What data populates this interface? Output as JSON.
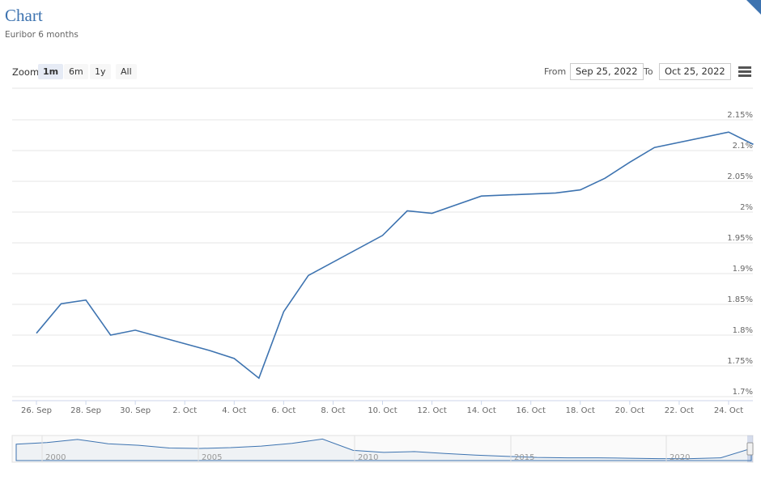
{
  "header": {
    "title": "Chart",
    "subtitle": "Euribor 6 months"
  },
  "toolbar": {
    "zoom_label": "Zoom",
    "zoom_buttons": [
      "1m",
      "6m",
      "1y",
      "All"
    ],
    "active_zoom": "1m",
    "from_label": "From",
    "from_value": "Sep 25, 2022",
    "to_label": "To",
    "to_value": "Oct 25, 2022",
    "menu_icon": "hamburger-menu-icon"
  },
  "chart_data": {
    "type": "line",
    "series": [
      {
        "x": [
          "2022-09-26",
          "2022-09-27",
          "2022-09-28",
          "2022-09-29",
          "2022-09-30",
          "2022-10-03",
          "2022-10-04",
          "2022-10-05",
          "2022-10-06",
          "2022-10-07",
          "2022-10-10",
          "2022-10-11",
          "2022-10-12",
          "2022-10-14",
          "2022-10-17",
          "2022-10-18",
          "2022-10-19",
          "2022-10-20",
          "2022-10-21",
          "2022-10-24",
          "2022-10-25"
        ],
        "values": [
          1.803,
          1.851,
          1.857,
          1.8,
          1.808,
          1.775,
          1.762,
          1.73,
          1.838,
          1.897,
          1.962,
          2.002,
          1.998,
          2.026,
          2.031,
          2.036,
          2.055,
          2.081,
          2.105,
          2.13,
          2.11
        ]
      }
    ],
    "x_ticks": [
      "26. Sep",
      "28. Sep",
      "30. Sep",
      "2. Oct",
      "4. Oct",
      "6. Oct",
      "8. Oct",
      "10. Oct",
      "12. Oct",
      "14. Oct",
      "16. Oct",
      "18. Oct",
      "20. Oct",
      "22. Oct",
      "24. Oct"
    ],
    "y_ticks": [
      "1.7%",
      "1.75%",
      "1.8%",
      "1.85%",
      "1.9%",
      "1.95%",
      "2%",
      "2.05%",
      "2.1%",
      "2.15%"
    ],
    "ylim": [
      1.7,
      2.15
    ],
    "grid": true,
    "line_color": "#3d73b0",
    "navigator": {
      "labels": [
        "2000",
        "2005",
        "2010",
        "2015",
        "2020"
      ],
      "values": [
        3.2,
        3.6,
        4.4,
        3.3,
        2.9,
        2.2,
        2.1,
        2.3,
        2.7,
        3.4,
        4.5,
        1.6,
        1.1,
        1.3,
        0.8,
        0.4,
        0.1,
        -0.2,
        -0.3,
        -0.3,
        -0.4,
        -0.5,
        -0.5,
        -0.3,
        2.1
      ]
    }
  }
}
